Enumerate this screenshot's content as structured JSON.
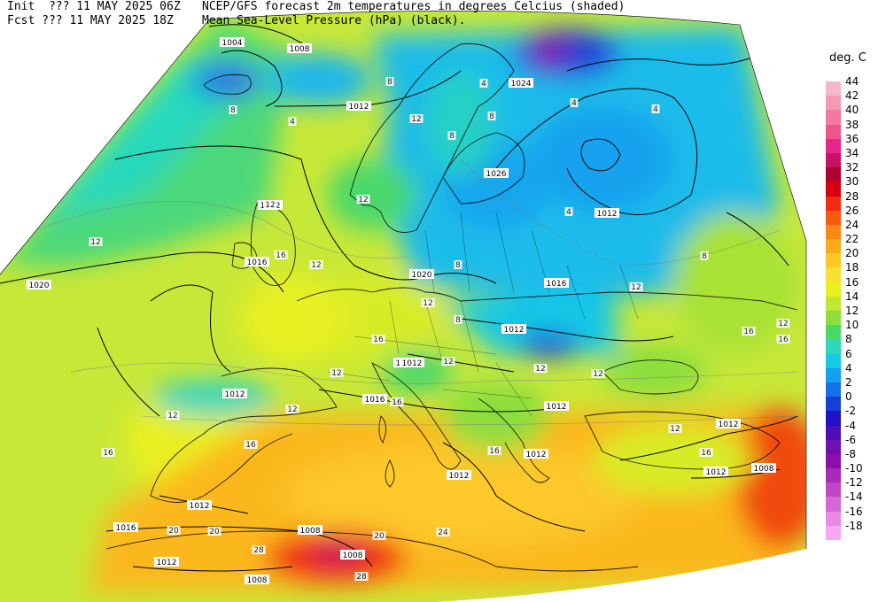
{
  "header": {
    "line1": {
      "left": "Init  ??? 11 MAY 2025 06Z",
      "right": "NCEP/GFS forecast 2m temperatures in degrees Celcius (shaded)"
    },
    "line2": {
      "left": "Fcst ??? 11 MAY 2025 18Z",
      "right": "Mean Sea-Level Pressure (hPa) (black)."
    }
  },
  "legend": {
    "title": "deg. C",
    "items": [
      {
        "label": "44",
        "color": "#f4b8c8"
      },
      {
        "label": "42",
        "color": "#f49ab4"
      },
      {
        "label": "40",
        "color": "#f27aa0"
      },
      {
        "label": "38",
        "color": "#ee558a"
      },
      {
        "label": "36",
        "color": "#e8248a"
      },
      {
        "label": "34",
        "color": "#c81066"
      },
      {
        "label": "32",
        "color": "#b0002c"
      },
      {
        "label": "30",
        "color": "#d80010"
      },
      {
        "label": "28",
        "color": "#f02c10"
      },
      {
        "label": "26",
        "color": "#f85a10"
      },
      {
        "label": "24",
        "color": "#fa8a18"
      },
      {
        "label": "22",
        "color": "#fbaa1a"
      },
      {
        "label": "20",
        "color": "#fcc82a"
      },
      {
        "label": "18",
        "color": "#f8e030"
      },
      {
        "label": "16",
        "color": "#e8f020"
      },
      {
        "label": "14",
        "color": "#c0e830"
      },
      {
        "label": "12",
        "color": "#8cde3c"
      },
      {
        "label": "10",
        "color": "#48d86a"
      },
      {
        "label": "8",
        "color": "#2ed8b8"
      },
      {
        "label": "6",
        "color": "#18c8e6"
      },
      {
        "label": "4",
        "color": "#14a0ee"
      },
      {
        "label": "2",
        "color": "#1670e8"
      },
      {
        "label": "0",
        "color": "#1840d8"
      },
      {
        "label": "-2",
        "color": "#2010c8"
      },
      {
        "label": "-4",
        "color": "#4c10b8"
      },
      {
        "label": "-6",
        "color": "#7010b0"
      },
      {
        "label": "-8",
        "color": "#8c10a8"
      },
      {
        "label": "-10",
        "color": "#a82ab8"
      },
      {
        "label": "-12",
        "color": "#c048c8"
      },
      {
        "label": "-14",
        "color": "#d868d8"
      },
      {
        "label": "-16",
        "color": "#ea88e6"
      },
      {
        "label": "-18",
        "color": "#f6a8f2"
      }
    ]
  },
  "isobars": {
    "labels": [
      "1004",
      "1008",
      "1012",
      "1024",
      "1026",
      "1012",
      "1012",
      "1016",
      "1020",
      "1020",
      "1016",
      "1012",
      "1012",
      "1016",
      "1012",
      "1012",
      "1012",
      "1012",
      "1012",
      "1012",
      "1008",
      "1008",
      "1016",
      "1012",
      "1012",
      "1008",
      "1008",
      "1012"
    ]
  },
  "temps": {
    "labels": [
      "8",
      "4",
      "8",
      "12",
      "4",
      "8",
      "8",
      "4",
      "4",
      "4",
      "12",
      "12",
      "12",
      "16",
      "12",
      "8",
      "12",
      "16",
      "16",
      "8",
      "12",
      "12",
      "12",
      "12",
      "16",
      "16",
      "12",
      "12",
      "16",
      "20",
      "20",
      "20",
      "24",
      "28",
      "28",
      "16",
      "12",
      "12",
      "16",
      "16",
      "8",
      "12"
    ]
  }
}
